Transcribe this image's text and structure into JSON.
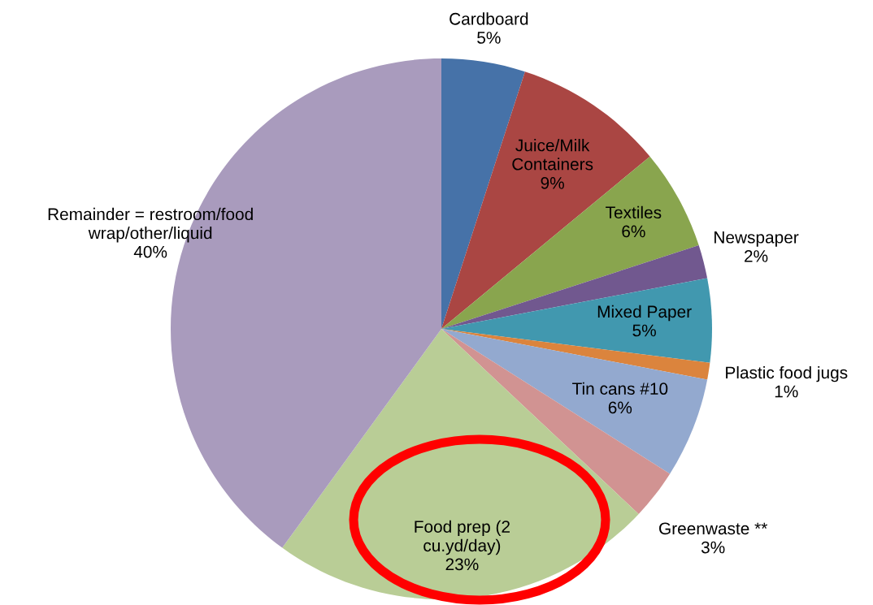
{
  "chart_data": {
    "type": "pie",
    "categories": [
      "Cardboard",
      "Juice/Milk\nContainers",
      "Textiles",
      "Newspaper",
      "Mixed Paper",
      "Plastic food jugs",
      "Tin cans #10",
      "Greenwaste **",
      "Food prep (2\ncu.yd/day)",
      "Remainder = restroom/food\nwrap/other/liquid"
    ],
    "values": [
      5,
      9,
      6,
      2,
      5,
      1,
      6,
      3,
      23,
      40
    ],
    "value_labels": [
      "5%",
      "9%",
      "6%",
      "2%",
      "5%",
      "1%",
      "6%",
      "3%",
      "23%",
      "40%"
    ],
    "colors": [
      "#4672a8",
      "#aa4643",
      "#89a54e",
      "#71588f",
      "#4198af",
      "#db843d",
      "#93a9cf",
      "#d19392",
      "#b9cd96",
      "#a99bbd"
    ]
  }
}
